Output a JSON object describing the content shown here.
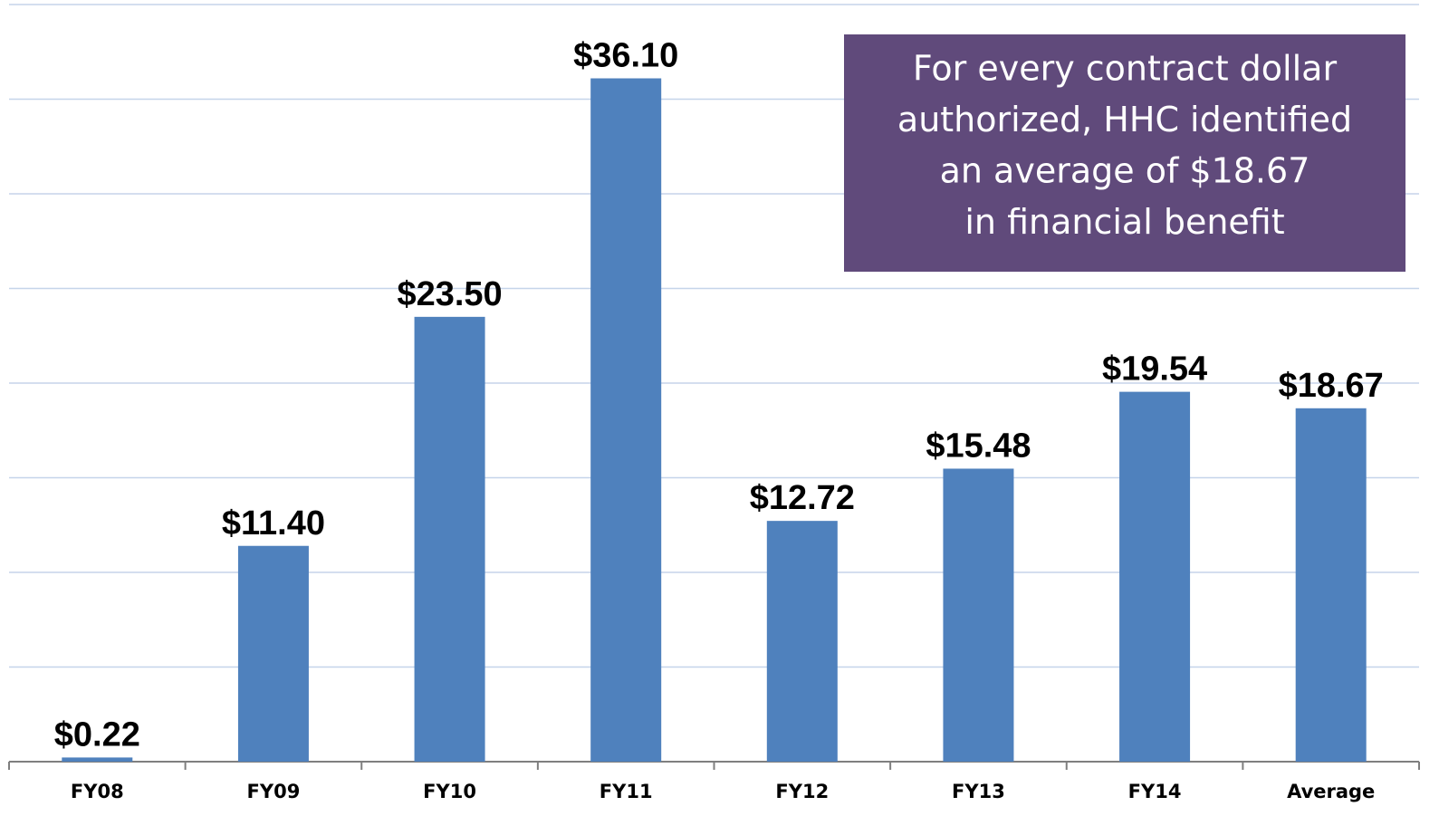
{
  "chart_data": {
    "type": "bar",
    "categories": [
      "FY08",
      "FY09",
      "FY10",
      "FY11",
      "FY12",
      "FY13",
      "FY14",
      "Average"
    ],
    "values": [
      0.22,
      11.4,
      23.5,
      36.1,
      12.72,
      15.48,
      19.54,
      18.67
    ],
    "value_labels": [
      "$0.22",
      "$11.40",
      "$23.50",
      "$36.10",
      "$12.72",
      "$15.48",
      "$19.54",
      "$18.67"
    ],
    "color": "#4f81bd",
    "ylim": [
      0,
      40
    ],
    "yticks": [
      0,
      5,
      10,
      15,
      20,
      25,
      30,
      35,
      40
    ],
    "grid": true,
    "annotation": [
      "For every contract dollar",
      "authorized, HHC identified",
      "an average of $18.67",
      "in financial benefit"
    ],
    "annotation_color": "#604a7b"
  }
}
